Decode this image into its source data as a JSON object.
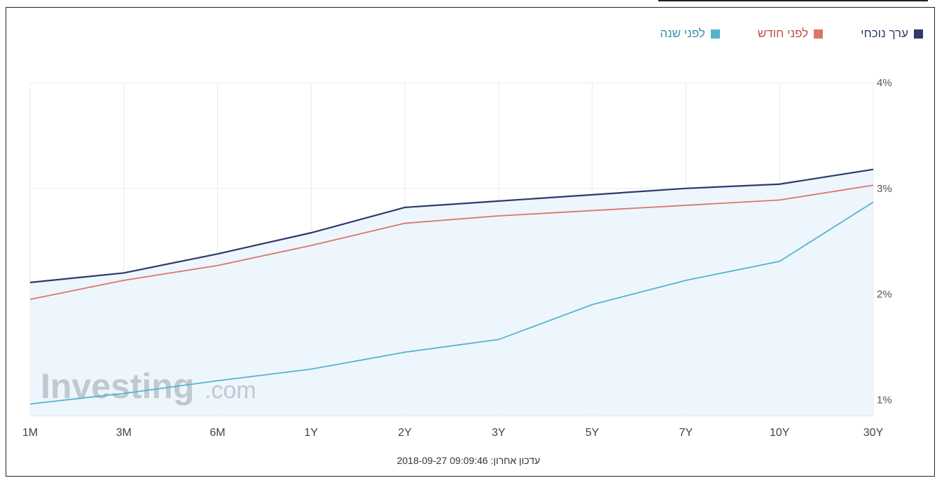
{
  "legend": [
    {
      "label": "ערך נוכחי",
      "color": "#2e3a6b"
    },
    {
      "label": "לפני חודש",
      "color": "#d9776a"
    },
    {
      "label": "לפני שנה",
      "color": "#55b3d0"
    }
  ],
  "watermark": {
    "brand": "Investing",
    "suffix": ".com"
  },
  "footer": {
    "label": "עדכון אחרון:",
    "timestamp": "2018-09-27 09:09:46"
  },
  "chart_data": {
    "type": "line",
    "categories": [
      "1M",
      "3M",
      "6M",
      "1Y",
      "2Y",
      "3Y",
      "5Y",
      "7Y",
      "10Y",
      "30Y"
    ],
    "ylim": [
      0.85,
      4
    ],
    "y_ticks": [
      {
        "value": 1,
        "label": "1%"
      },
      {
        "value": 2,
        "label": "2%"
      },
      {
        "value": 3,
        "label": "3%"
      },
      {
        "value": 4,
        "label": "4%"
      }
    ],
    "grid": true,
    "y_axis_position": "right",
    "legend_position": "top-right",
    "series": [
      {
        "name": "ערך נוכחי",
        "color": "#2e3a6b",
        "values": [
          2.11,
          2.2,
          2.38,
          2.58,
          2.82,
          2.88,
          2.94,
          3.0,
          3.04,
          3.18
        ]
      },
      {
        "name": "לפני חודש",
        "color": "#d9776a",
        "values": [
          1.95,
          2.13,
          2.27,
          2.46,
          2.67,
          2.74,
          2.79,
          2.84,
          2.89,
          3.03
        ]
      },
      {
        "name": "לפני שנה",
        "color": "#55b3d0",
        "values": [
          0.96,
          1.06,
          1.18,
          1.29,
          1.45,
          1.57,
          1.9,
          2.13,
          2.31,
          2.87
        ]
      }
    ]
  }
}
